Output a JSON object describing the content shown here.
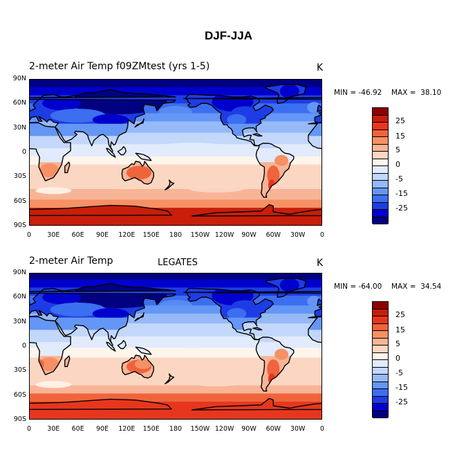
{
  "title": "DJF-JJA",
  "units": "K",
  "colors": [
    "#000080",
    "#0000cd",
    "#1e3ce6",
    "#3c6ef0",
    "#6496f5",
    "#96b9f8",
    "#c3d7fb",
    "#e1ebfd",
    "#fff5eb",
    "#fbd7c3",
    "#f8b496",
    "#f59164",
    "#f0643c",
    "#e6371e",
    "#c81e0a",
    "#8c0000"
  ],
  "colorbar_labels": [
    "25",
    "15",
    "5",
    "0",
    "-5",
    "-15",
    "-25"
  ],
  "lat_labels": [
    "90N",
    "60N",
    "30N",
    "0",
    "30S",
    "60S",
    "90S"
  ],
  "lon_labels": [
    "0",
    "30E",
    "60E",
    "90E",
    "120E",
    "150E",
    "180",
    "150W",
    "120W",
    "90W",
    "60W",
    "30W",
    "0"
  ],
  "panels": [
    {
      "title_left": "2-meter Air Temp f09ZMtest (yrs 1-5)",
      "title_center": "",
      "min_text": "MIN = -46.92",
      "max_text": "MAX =  38.10"
    },
    {
      "title_left": "2-meter Air Temp",
      "title_center": "LEGATES",
      "min_text": "MIN = -64.00",
      "max_text": "MAX =  34.54"
    }
  ]
}
